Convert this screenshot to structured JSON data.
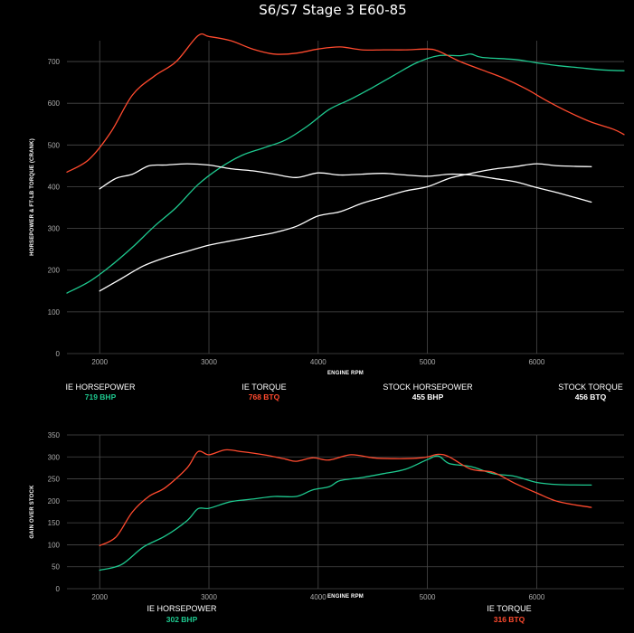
{
  "title": "S6/S7 Stage 3 E60-85",
  "colors": {
    "hp": "#1ec98f",
    "tq": "#ff4a2e",
    "stock": "#ffffff",
    "grid": "#4a4a4a",
    "axis": "#aaaaaa"
  },
  "chart_data": [
    {
      "type": "line",
      "xlabel": "ENGINE RPM",
      "ylabel": "HORSEPOWER & FT-LB TORQUE (CRANK)",
      "xlim": [
        1700,
        6800
      ],
      "ylim": [
        0,
        750
      ],
      "xticks": [
        2000,
        3000,
        4000,
        5000,
        6000
      ],
      "yticks": [
        0,
        100,
        200,
        300,
        400,
        500,
        600,
        700
      ],
      "grid": true,
      "series": [
        {
          "name": "IE HORSEPOWER",
          "peak": "719 BHP",
          "color_key": "hp",
          "x": [
            1700,
            1900,
            2100,
            2300,
            2500,
            2700,
            2900,
            3100,
            3300,
            3500,
            3700,
            3900,
            4100,
            4300,
            4500,
            4700,
            4900,
            5100,
            5300,
            5400,
            5500,
            5800,
            6000,
            6200,
            6400,
            6600,
            6800
          ],
          "y": [
            145,
            172,
            210,
            255,
            305,
            350,
            405,
            445,
            475,
            493,
            512,
            545,
            585,
            610,
            638,
            668,
            697,
            714,
            714,
            718,
            710,
            705,
            697,
            690,
            685,
            680,
            678
          ]
        },
        {
          "name": "IE TORQUE",
          "peak": "768 BTQ",
          "color_key": "tq",
          "x": [
            1700,
            1900,
            2100,
            2300,
            2500,
            2700,
            2900,
            3000,
            3200,
            3400,
            3600,
            3800,
            4000,
            4200,
            4400,
            4600,
            4800,
            5000,
            5100,
            5300,
            5500,
            5700,
            5900,
            6100,
            6300,
            6500,
            6700,
            6800
          ],
          "y": [
            435,
            465,
            530,
            620,
            665,
            700,
            762,
            760,
            750,
            730,
            718,
            720,
            730,
            735,
            728,
            728,
            728,
            730,
            725,
            700,
            680,
            660,
            635,
            605,
            578,
            555,
            538,
            525
          ]
        },
        {
          "name": "STOCK HORSEPOWER",
          "peak": "455 BHP",
          "color_key": "stock",
          "x": [
            2000,
            2200,
            2400,
            2600,
            2800,
            3000,
            3200,
            3400,
            3600,
            3800,
            4000,
            4200,
            4400,
            4600,
            4800,
            5000,
            5200,
            5400,
            5600,
            5800,
            6000,
            6200,
            6500
          ],
          "y": [
            150,
            180,
            210,
            230,
            245,
            260,
            270,
            280,
            290,
            305,
            330,
            340,
            360,
            375,
            390,
            400,
            420,
            432,
            442,
            448,
            455,
            450,
            448
          ]
        },
        {
          "name": "STOCK TORQUE",
          "peak": "456 BTQ",
          "color_key": "stock",
          "x": [
            2000,
            2150,
            2300,
            2450,
            2600,
            2800,
            3000,
            3200,
            3400,
            3600,
            3800,
            4000,
            4200,
            4400,
            4600,
            4800,
            5000,
            5200,
            5400,
            5600,
            5800,
            6000,
            6200,
            6500
          ],
          "y": [
            395,
            420,
            430,
            450,
            452,
            455,
            452,
            443,
            438,
            430,
            422,
            433,
            428,
            430,
            432,
            428,
            425,
            430,
            428,
            420,
            412,
            398,
            385,
            363
          ]
        }
      ]
    },
    {
      "type": "line",
      "xlabel": "ENGINE RPM",
      "ylabel": "GAIN OVER STOCK",
      "xlim": [
        1700,
        6800
      ],
      "ylim": [
        0,
        350
      ],
      "xticks": [
        2000,
        3000,
        4000,
        5000,
        6000
      ],
      "yticks": [
        0,
        50,
        100,
        150,
        200,
        250,
        300,
        350
      ],
      "grid": true,
      "series": [
        {
          "name": "IE HORSEPOWER",
          "peak": "302 BHP",
          "color_key": "hp",
          "x": [
            2000,
            2200,
            2400,
            2600,
            2800,
            2900,
            3000,
            3200,
            3400,
            3600,
            3800,
            3950,
            4100,
            4200,
            4400,
            4600,
            4800,
            5000,
            5100,
            5200,
            5400,
            5600,
            5800,
            6000,
            6200,
            6500
          ],
          "y": [
            42,
            55,
            95,
            120,
            155,
            182,
            183,
            198,
            204,
            210,
            210,
            225,
            232,
            246,
            253,
            262,
            272,
            294,
            302,
            285,
            278,
            262,
            256,
            242,
            237,
            236
          ]
        },
        {
          "name": "IE TORQUE",
          "peak": "316 BTQ",
          "color_key": "tq",
          "x": [
            2000,
            2150,
            2300,
            2450,
            2600,
            2800,
            2900,
            3000,
            3150,
            3300,
            3500,
            3700,
            3800,
            3950,
            4100,
            4300,
            4500,
            4700,
            4900,
            5000,
            5100,
            5200,
            5400,
            5600,
            5800,
            6000,
            6200,
            6500
          ],
          "y": [
            98,
            118,
            175,
            210,
            230,
            275,
            312,
            305,
            316,
            312,
            305,
            295,
            290,
            298,
            293,
            305,
            298,
            296,
            297,
            300,
            306,
            300,
            272,
            265,
            240,
            218,
            198,
            185
          ]
        }
      ]
    }
  ],
  "legend_top": [
    {
      "name": "IE HORSEPOWER",
      "value": "719 BHP",
      "color_key": "hp"
    },
    {
      "name": "IE TORQUE",
      "value": "768 BTQ",
      "color_key": "tq"
    },
    {
      "name": "STOCK HORSEPOWER",
      "value": "455 BHP",
      "color_key": "stock"
    },
    {
      "name": "STOCK TORQUE",
      "value": "456 BTQ",
      "color_key": "stock"
    }
  ],
  "legend_bottom": [
    {
      "name": "IE HORSEPOWER",
      "value": "302 BHP",
      "color_key": "hp"
    },
    {
      "name": "IE TORQUE",
      "value": "316 BTQ",
      "color_key": "tq"
    }
  ]
}
